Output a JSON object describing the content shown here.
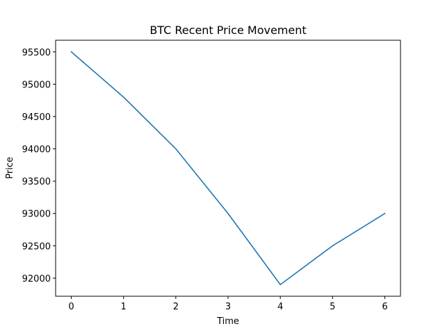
{
  "chart_data": {
    "type": "line",
    "title": "BTC Recent Price Movement",
    "xlabel": "Time",
    "ylabel": "Price",
    "x": [
      0,
      1,
      2,
      3,
      4,
      5,
      6
    ],
    "series": [
      {
        "values": [
          95500,
          94800,
          94000,
          93000,
          91900,
          92500,
          93000
        ],
        "color": "#1f77b4"
      }
    ],
    "xlim": [
      -0.3,
      6.3
    ],
    "ylim": [
      91720,
      95680
    ],
    "xticks": [
      0,
      1,
      2,
      3,
      4,
      5,
      6
    ],
    "yticks": [
      92000,
      92500,
      93000,
      93500,
      94000,
      94500,
      95000,
      95500
    ],
    "xtick_labels": [
      "0",
      "1",
      "2",
      "3",
      "4",
      "5",
      "6"
    ],
    "ytick_labels": [
      "92000",
      "92500",
      "93000",
      "93500",
      "94000",
      "94500",
      "95000",
      "95500"
    ],
    "grid": false,
    "legend": "none"
  }
}
